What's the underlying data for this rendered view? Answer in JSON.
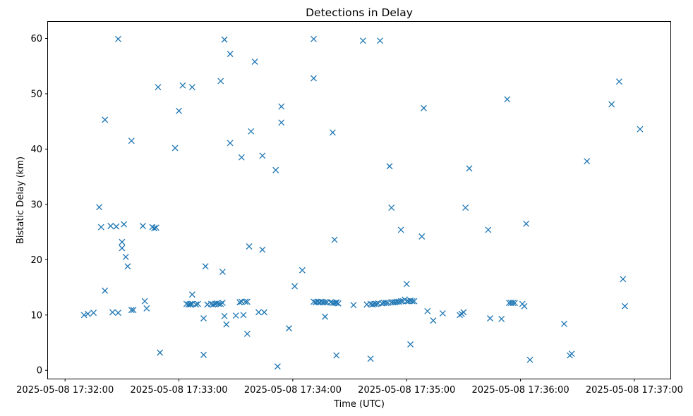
{
  "chart_data": {
    "type": "scatter",
    "title": "Detections in Delay",
    "xlabel": "Time (UTC)",
    "ylabel": "Bistatic Delay (km)",
    "x_date": "2025-05-08",
    "x_ticks": [
      "17:32:00",
      "17:33:00",
      "17:34:00",
      "17:35:00",
      "17:36:00",
      "17:37:00"
    ],
    "x_tick_labels": [
      "2025-05-08 17:32:00",
      "2025-05-08 17:33:00",
      "2025-05-08 17:34:00",
      "2025-05-08 17:35:00",
      "2025-05-08 17:36:00",
      "2025-05-08 17:37:00"
    ],
    "xlim": [
      "17:31:51",
      "17:37:19"
    ],
    "y_ticks": [
      0,
      10,
      20,
      30,
      40,
      50,
      60
    ],
    "ylim": [
      -1.5,
      63
    ],
    "marker": "x",
    "grid": false,
    "color": "#1f77b4",
    "points": [
      [
        "17:32:10",
        10.0
      ],
      [
        "17:32:12",
        10.2
      ],
      [
        "17:32:15",
        10.4
      ],
      [
        "17:32:18",
        29.5
      ],
      [
        "17:32:19",
        25.9
      ],
      [
        "17:32:21",
        45.3
      ],
      [
        "17:32:21",
        14.4
      ],
      [
        "17:32:24",
        26.1
      ],
      [
        "17:32:25",
        10.5
      ],
      [
        "17:32:27",
        26.0
      ],
      [
        "17:32:28",
        10.4
      ],
      [
        "17:32:28",
        59.9
      ],
      [
        "17:32:30",
        22.1
      ],
      [
        "17:32:30",
        23.2
      ],
      [
        "17:32:31",
        26.4
      ],
      [
        "17:32:32",
        20.5
      ],
      [
        "17:32:33",
        18.8
      ],
      [
        "17:32:35",
        41.5
      ],
      [
        "17:32:35",
        10.9
      ],
      [
        "17:32:36",
        10.9
      ],
      [
        "17:32:41",
        26.1
      ],
      [
        "17:32:42",
        12.5
      ],
      [
        "17:32:43",
        11.2
      ],
      [
        "17:32:46",
        25.9
      ],
      [
        "17:32:47",
        25.7
      ],
      [
        "17:32:48",
        25.8
      ],
      [
        "17:32:49",
        51.2
      ],
      [
        "17:32:50",
        3.2
      ],
      [
        "17:32:58",
        40.2
      ],
      [
        "17:33:00",
        46.9
      ],
      [
        "17:33:02",
        51.5
      ],
      [
        "17:33:04",
        12.0
      ],
      [
        "17:33:05",
        11.9
      ],
      [
        "17:33:06",
        12.0
      ],
      [
        "17:33:06",
        11.9
      ],
      [
        "17:33:07",
        12.0
      ],
      [
        "17:33:07",
        13.7
      ],
      [
        "17:33:07",
        51.2
      ],
      [
        "17:33:09",
        11.9
      ],
      [
        "17:33:10",
        12.0
      ],
      [
        "17:33:13",
        9.4
      ],
      [
        "17:33:13",
        2.8
      ],
      [
        "17:33:14",
        18.8
      ],
      [
        "17:33:15",
        11.9
      ],
      [
        "17:33:17",
        12.0
      ],
      [
        "17:33:18",
        11.9
      ],
      [
        "17:33:19",
        12.0
      ],
      [
        "17:33:20",
        12.1
      ],
      [
        "17:33:21",
        12.0
      ],
      [
        "17:33:22",
        12.0
      ],
      [
        "17:33:22",
        52.3
      ],
      [
        "17:33:23",
        12.2
      ],
      [
        "17:33:23",
        17.8
      ],
      [
        "17:33:24",
        59.8
      ],
      [
        "17:33:24",
        9.8
      ],
      [
        "17:33:25",
        8.3
      ],
      [
        "17:33:27",
        41.1
      ],
      [
        "17:33:27",
        57.2
      ],
      [
        "17:33:30",
        9.9
      ],
      [
        "17:33:32",
        12.3
      ],
      [
        "17:33:33",
        38.5
      ],
      [
        "17:33:33",
        12.4
      ],
      [
        "17:33:34",
        10.0
      ],
      [
        "17:33:35",
        12.4
      ],
      [
        "17:33:36",
        12.4
      ],
      [
        "17:33:36",
        6.6
      ],
      [
        "17:33:37",
        22.4
      ],
      [
        "17:33:38",
        43.2
      ],
      [
        "17:33:40",
        55.8
      ],
      [
        "17:33:42",
        10.5
      ],
      [
        "17:33:44",
        38.8
      ],
      [
        "17:33:44",
        21.8
      ],
      [
        "17:33:45",
        10.5
      ],
      [
        "17:33:51",
        36.2
      ],
      [
        "17:33:52",
        0.7
      ],
      [
        "17:33:54",
        47.7
      ],
      [
        "17:33:54",
        44.8
      ],
      [
        "17:33:58",
        7.6
      ],
      [
        "17:34:01",
        15.2
      ],
      [
        "17:34:05",
        18.1
      ],
      [
        "17:34:11",
        59.9
      ],
      [
        "17:34:11",
        52.8
      ],
      [
        "17:34:11",
        12.4
      ],
      [
        "17:34:12",
        12.3
      ],
      [
        "17:34:13",
        12.4
      ],
      [
        "17:34:14",
        12.3
      ],
      [
        "17:34:15",
        12.4
      ],
      [
        "17:34:16",
        12.3
      ],
      [
        "17:34:17",
        9.7
      ],
      [
        "17:34:17",
        12.3
      ],
      [
        "17:34:18",
        12.3
      ],
      [
        "17:34:20",
        12.3
      ],
      [
        "17:34:21",
        12.2
      ],
      [
        "17:34:21",
        43.0
      ],
      [
        "17:34:22",
        12.2
      ],
      [
        "17:34:22",
        23.6
      ],
      [
        "17:34:23",
        12.2
      ],
      [
        "17:34:23",
        2.7
      ],
      [
        "17:34:23",
        12.3
      ],
      [
        "17:34:24",
        12.1
      ],
      [
        "17:34:32",
        11.8
      ],
      [
        "17:34:37",
        59.6
      ],
      [
        "17:34:39",
        11.9
      ],
      [
        "17:34:41",
        12.0
      ],
      [
        "17:34:41",
        2.1
      ],
      [
        "17:34:42",
        11.9
      ],
      [
        "17:34:43",
        12.0
      ],
      [
        "17:34:44",
        12.0
      ],
      [
        "17:34:45",
        12.1
      ],
      [
        "17:34:46",
        59.6
      ],
      [
        "17:34:47",
        12.1
      ],
      [
        "17:34:48",
        12.2
      ],
      [
        "17:34:49",
        12.2
      ],
      [
        "17:34:50",
        12.2
      ],
      [
        "17:34:51",
        36.9
      ],
      [
        "17:34:52",
        29.4
      ],
      [
        "17:34:52",
        12.3
      ],
      [
        "17:34:53",
        12.3
      ],
      [
        "17:34:54",
        12.3
      ],
      [
        "17:34:55",
        12.4
      ],
      [
        "17:34:56",
        12.4
      ],
      [
        "17:34:57",
        12.5
      ],
      [
        "17:34:57",
        25.4
      ],
      [
        "17:34:58",
        12.5
      ],
      [
        "17:34:59",
        12.8
      ],
      [
        "17:35:00",
        12.5
      ],
      [
        "17:35:00",
        15.6
      ],
      [
        "17:35:01",
        12.5
      ],
      [
        "17:35:02",
        12.6
      ],
      [
        "17:35:02",
        4.7
      ],
      [
        "17:35:03",
        12.5
      ],
      [
        "17:35:04",
        12.5
      ],
      [
        "17:35:08",
        24.2
      ],
      [
        "17:35:09",
        47.4
      ],
      [
        "17:35:11",
        10.7
      ],
      [
        "17:35:14",
        9.0
      ],
      [
        "17:35:19",
        10.3
      ],
      [
        "17:35:28",
        10.0
      ],
      [
        "17:35:29",
        10.2
      ],
      [
        "17:35:30",
        10.5
      ],
      [
        "17:35:31",
        29.4
      ],
      [
        "17:35:33",
        36.5
      ],
      [
        "17:35:43",
        25.4
      ],
      [
        "17:35:44",
        9.4
      ],
      [
        "17:35:50",
        9.3
      ],
      [
        "17:35:53",
        49.0
      ],
      [
        "17:35:54",
        12.2
      ],
      [
        "17:35:55",
        12.2
      ],
      [
        "17:35:56",
        12.2
      ],
      [
        "17:35:57",
        12.2
      ],
      [
        "17:36:01",
        12.0
      ],
      [
        "17:36:02",
        11.6
      ],
      [
        "17:36:03",
        26.5
      ],
      [
        "17:36:05",
        1.9
      ],
      [
        "17:36:23",
        8.4
      ],
      [
        "17:36:26",
        2.7
      ],
      [
        "17:36:27",
        3.0
      ],
      [
        "17:36:35",
        37.8
      ],
      [
        "17:36:48",
        48.1
      ],
      [
        "17:36:52",
        52.2
      ],
      [
        "17:36:54",
        16.5
      ],
      [
        "17:36:55",
        11.6
      ],
      [
        "17:37:03",
        43.6
      ]
    ]
  }
}
